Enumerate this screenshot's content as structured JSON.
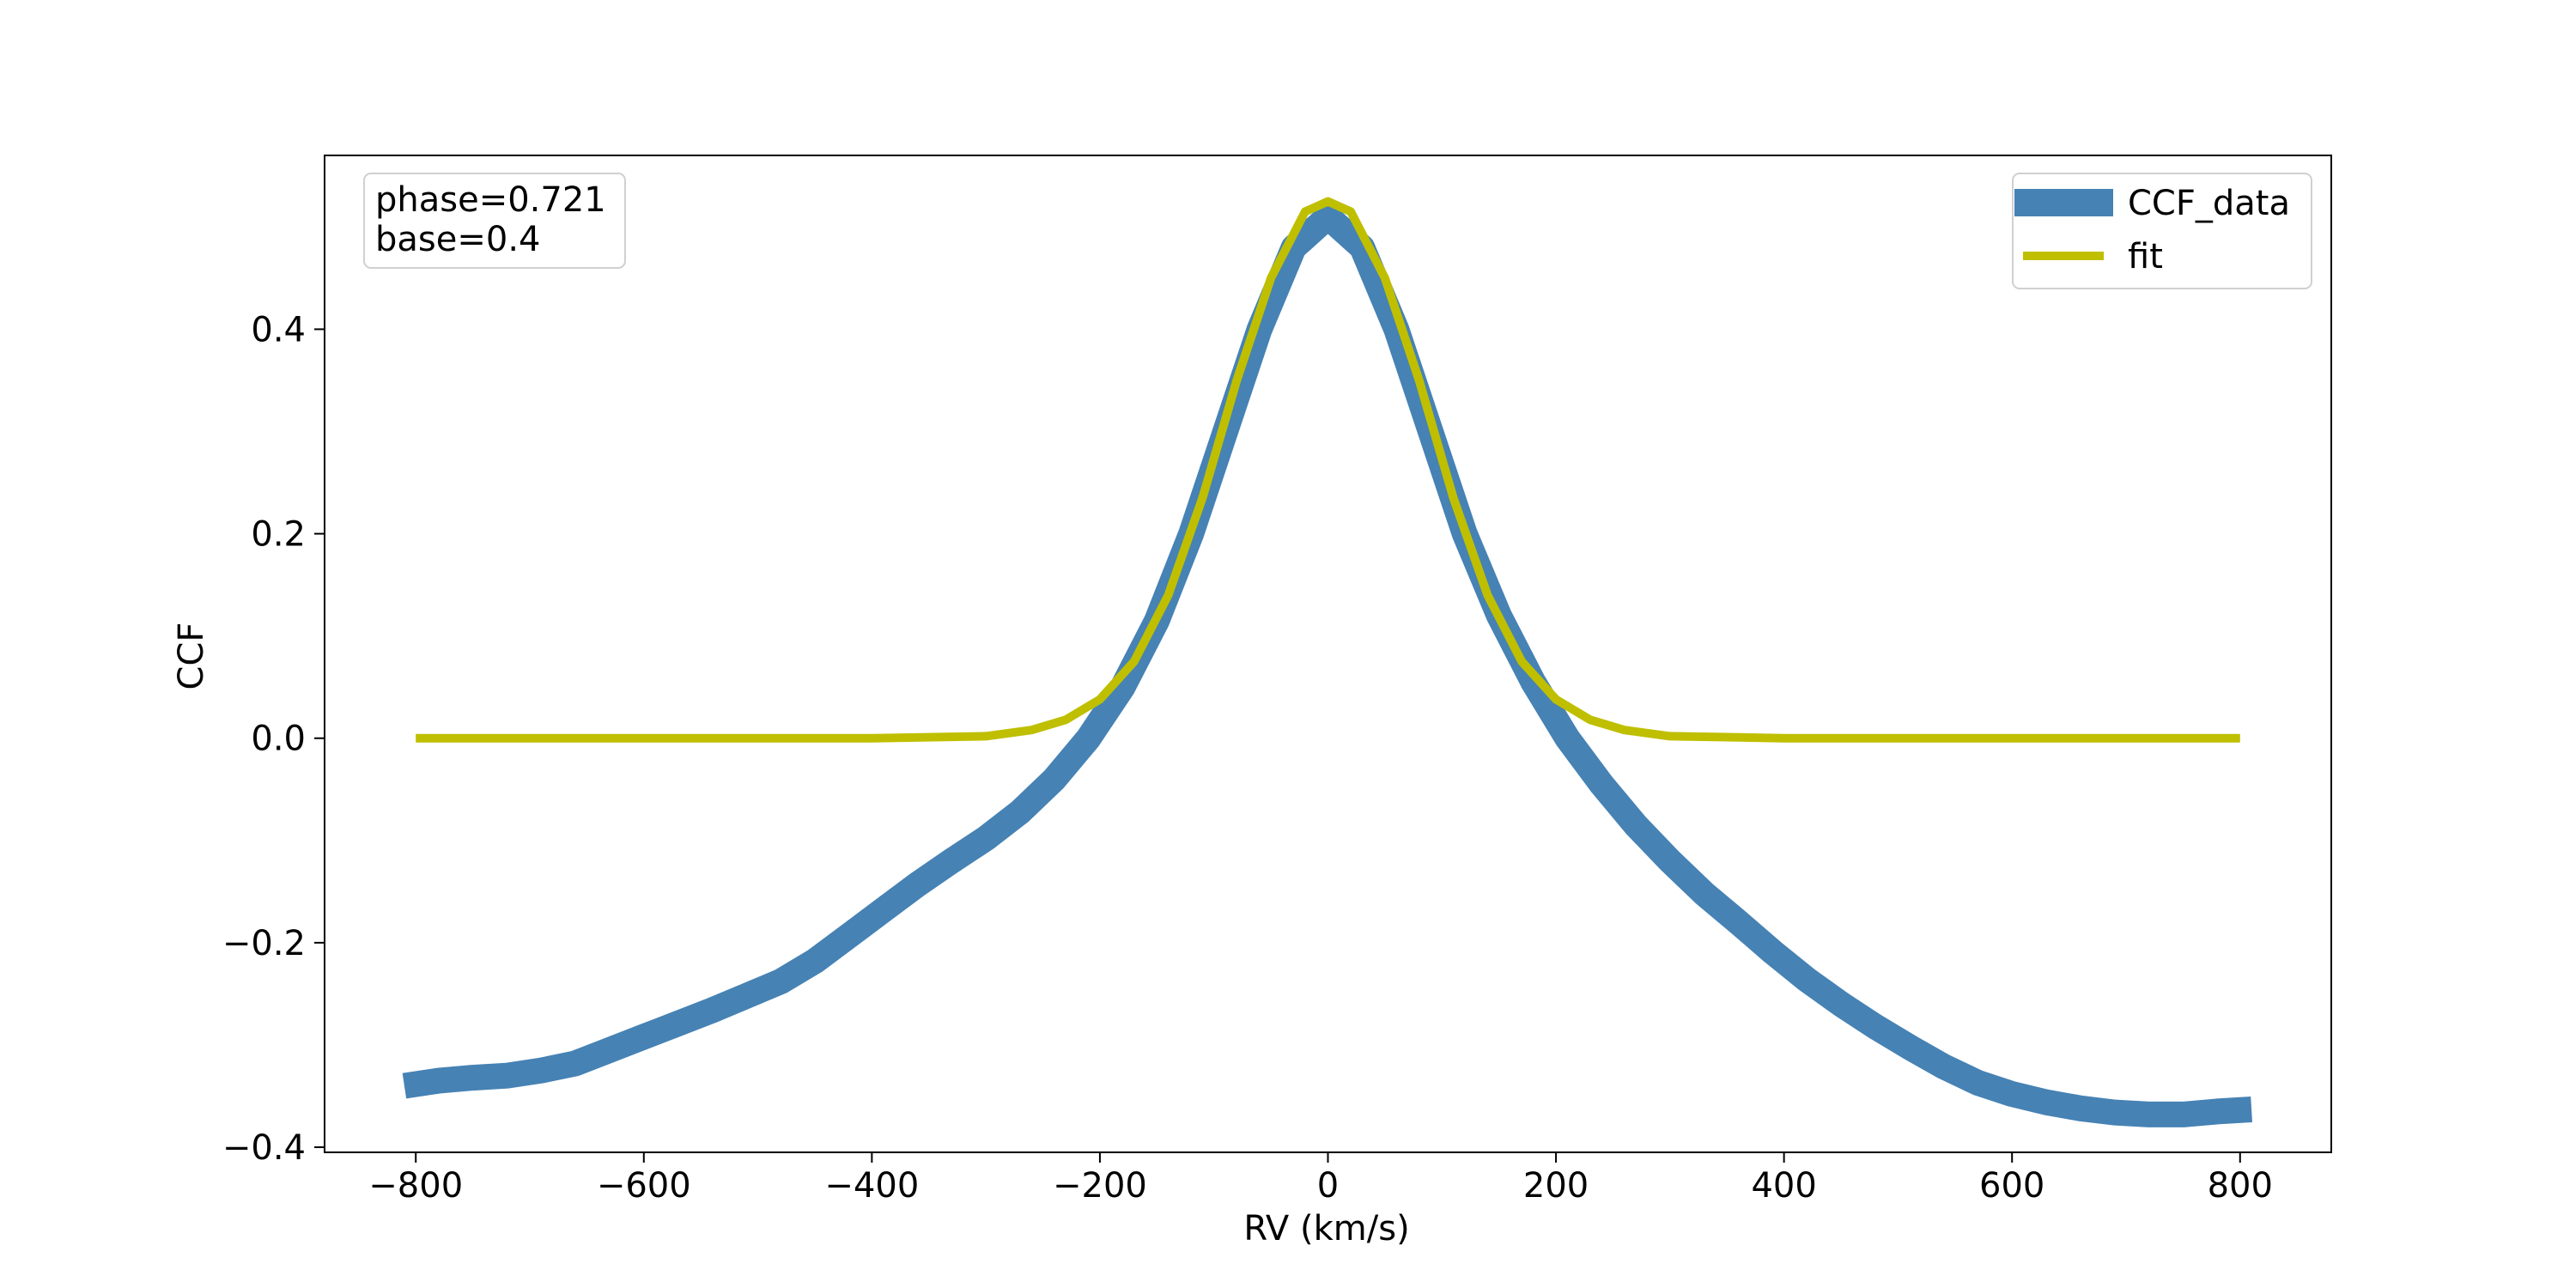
{
  "chart_data": {
    "type": "line",
    "xlabel": "RV (km/s)",
    "ylabel": "CCF",
    "xlim": [
      -880,
      880
    ],
    "ylim": [
      -0.405,
      0.57
    ],
    "xticks": [
      -800,
      -600,
      -400,
      -200,
      0,
      200,
      400,
      600,
      800
    ],
    "xtick_labels": [
      "−800",
      "−600",
      "−400",
      "−200",
      "0",
      "200",
      "400",
      "600",
      "800"
    ],
    "yticks": [
      -0.4,
      -0.2,
      0.0,
      0.2,
      0.4
    ],
    "ytick_labels": [
      "−0.4",
      "−0.2",
      "0.0",
      "0.2",
      "0.4"
    ],
    "grid": false,
    "legend_position": "top-right",
    "annotation": {
      "position": "top-left",
      "lines": [
        "phase=0.721",
        "base=0.4"
      ]
    },
    "series": [
      {
        "name": "CCF_data",
        "color": "#4682b4",
        "x": [
          -810,
          -780,
          -750,
          -720,
          -690,
          -660,
          -630,
          -600,
          -570,
          -540,
          -510,
          -480,
          -450,
          -420,
          -390,
          -360,
          -330,
          -300,
          -270,
          -240,
          -210,
          -180,
          -150,
          -120,
          -90,
          -60,
          -30,
          0,
          30,
          60,
          90,
          120,
          150,
          180,
          210,
          240,
          270,
          300,
          330,
          360,
          390,
          420,
          450,
          480,
          510,
          540,
          570,
          600,
          630,
          660,
          690,
          720,
          750,
          780,
          810
        ],
        "y": [
          -0.34,
          -0.335,
          -0.332,
          -0.33,
          -0.325,
          -0.318,
          -0.305,
          -0.292,
          -0.279,
          -0.266,
          -0.252,
          -0.238,
          -0.218,
          -0.193,
          -0.168,
          -0.143,
          -0.12,
          -0.098,
          -0.072,
          -0.04,
          0.0,
          0.05,
          0.115,
          0.2,
          0.3,
          0.4,
          0.48,
          0.51,
          0.48,
          0.4,
          0.3,
          0.2,
          0.12,
          0.055,
          0.0,
          -0.045,
          -0.085,
          -0.12,
          -0.152,
          -0.18,
          -0.209,
          -0.236,
          -0.26,
          -0.282,
          -0.302,
          -0.321,
          -0.337,
          -0.348,
          -0.356,
          -0.362,
          -0.366,
          -0.368,
          -0.368,
          -0.365,
          -0.363
        ]
      },
      {
        "name": "fit",
        "color": "#bfbf00",
        "x": [
          -800,
          -600,
          -400,
          -300,
          -260,
          -230,
          -200,
          -170,
          -140,
          -110,
          -80,
          -50,
          -20,
          0,
          20,
          50,
          80,
          110,
          140,
          170,
          200,
          230,
          260,
          300,
          400,
          600,
          800
        ],
        "y": [
          0.0,
          0.0,
          0.0,
          0.002,
          0.008,
          0.018,
          0.038,
          0.075,
          0.14,
          0.235,
          0.35,
          0.45,
          0.515,
          0.525,
          0.515,
          0.45,
          0.35,
          0.235,
          0.14,
          0.075,
          0.038,
          0.018,
          0.008,
          0.002,
          0.0,
          0.0,
          0.0
        ]
      }
    ]
  }
}
